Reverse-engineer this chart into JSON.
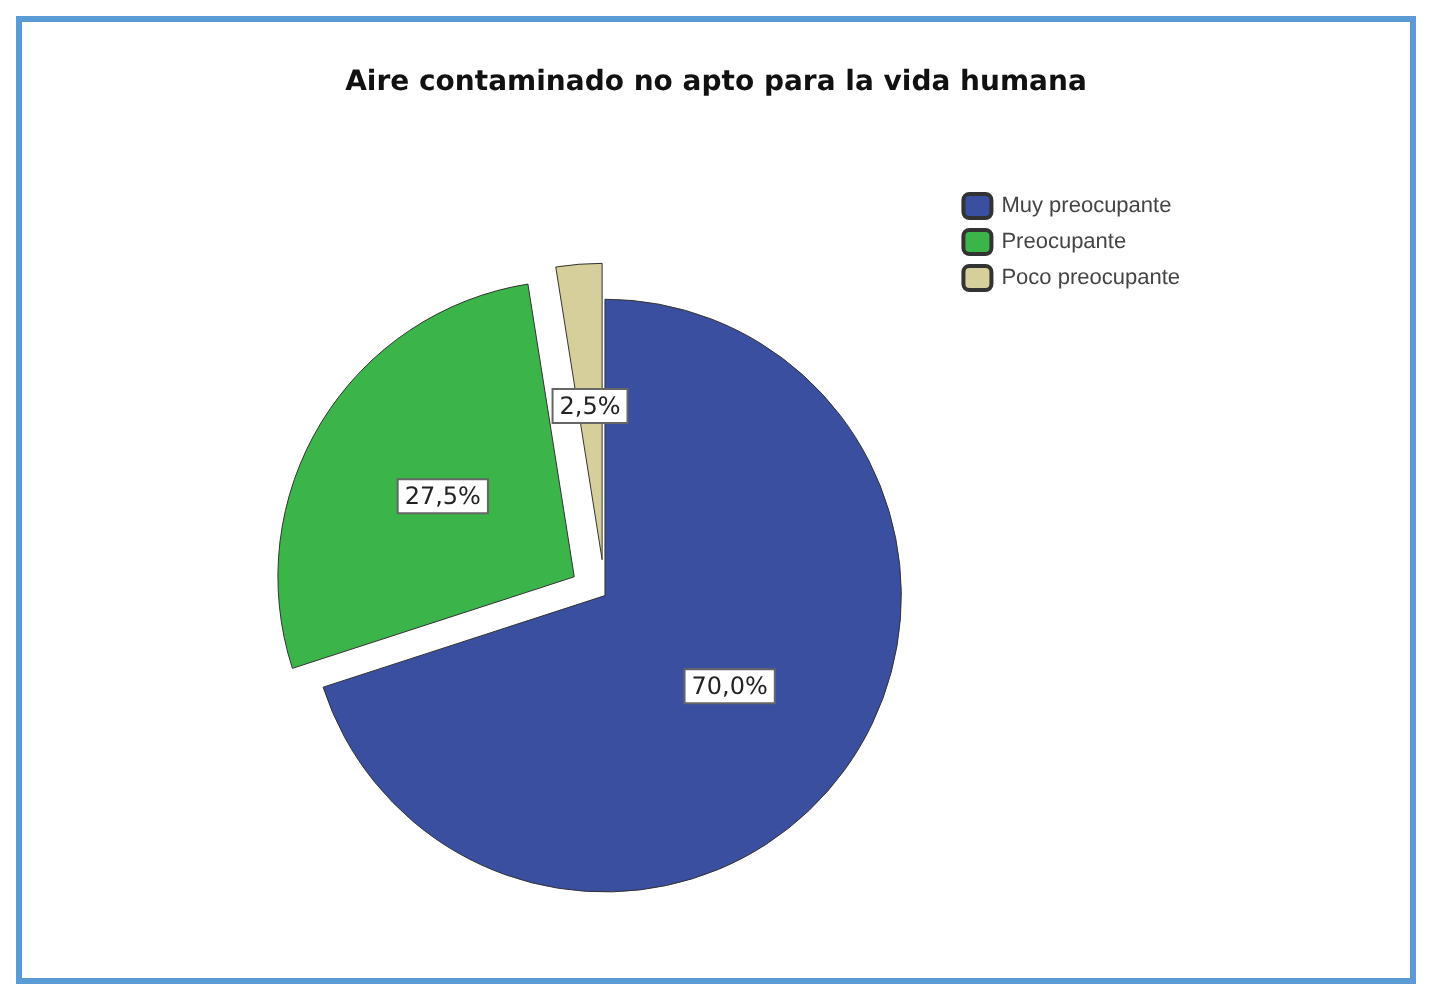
{
  "chart_data": {
    "type": "pie",
    "title": "Aire contaminado no apto para la vida humana",
    "categories": [
      "Muy preocupante",
      "Preocupante",
      "Poco preocupante"
    ],
    "values": [
      70,
      27.5,
      2.5
    ],
    "colors": [
      "#3a4fa0",
      "#3bb54a",
      "#d6cf9c"
    ],
    "value_labels": [
      "70,0%",
      "27,5%",
      "2,5%"
    ],
    "legend": "top right"
  }
}
